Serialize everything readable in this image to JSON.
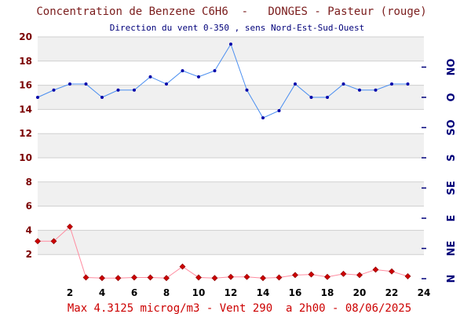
{
  "chart_data": {
    "type": "line",
    "title": "Concentration de Benzene C6H6  -   DONGES - Pasteur (rouge)",
    "subtitle": "Direction du vent 0-350 , sens Nord-Est-Sud-Ouest",
    "footer": "Max 4.3125 microg/m3 - Vent 290  a 2h00 - 08/06/2025",
    "x": [
      0,
      1,
      2,
      3,
      4,
      5,
      6,
      7,
      8,
      9,
      10,
      11,
      12,
      13,
      14,
      15,
      16,
      17,
      18,
      19,
      20,
      21,
      22,
      23
    ],
    "xlim": [
      0,
      24
    ],
    "x_ticks": [
      "2",
      "4",
      "6",
      "8",
      "10",
      "12",
      "14",
      "16",
      "18",
      "20",
      "22",
      "24"
    ],
    "ylim": [
      0,
      20
    ],
    "y_ticks": [
      "2",
      "4",
      "6",
      "8",
      "10",
      "12",
      "14",
      "16",
      "18",
      "20"
    ],
    "right_axis_labels": [
      "N",
      "NE",
      "E",
      "SE",
      "S",
      "SO",
      "O",
      "NO"
    ],
    "grid": true,
    "series": [
      {
        "name": "rouge",
        "axis": "left",
        "color": "#cc0000",
        "line_color": "#ff8ca0",
        "marker": "diamond",
        "values": [
          3.1,
          3.1,
          4.3,
          0.1,
          0.05,
          0.05,
          0.1,
          0.1,
          0.05,
          1.0,
          0.1,
          0.05,
          0.15,
          0.15,
          0.05,
          0.1,
          0.3,
          0.35,
          0.15,
          0.4,
          0.3,
          0.75,
          0.6,
          0.2
        ]
      },
      {
        "axis": "right",
        "color": "#0000aa",
        "line_color": "#4a8ef0",
        "marker": "dot",
        "values": [
          15.0,
          15.6,
          16.1,
          16.1,
          15.0,
          15.6,
          15.6,
          16.7,
          16.1,
          17.2,
          16.7,
          17.2,
          19.4,
          15.6,
          13.3,
          13.9,
          16.1,
          15.0,
          15.0,
          16.1,
          15.6,
          15.6,
          16.1,
          16.1
        ]
      }
    ]
  }
}
